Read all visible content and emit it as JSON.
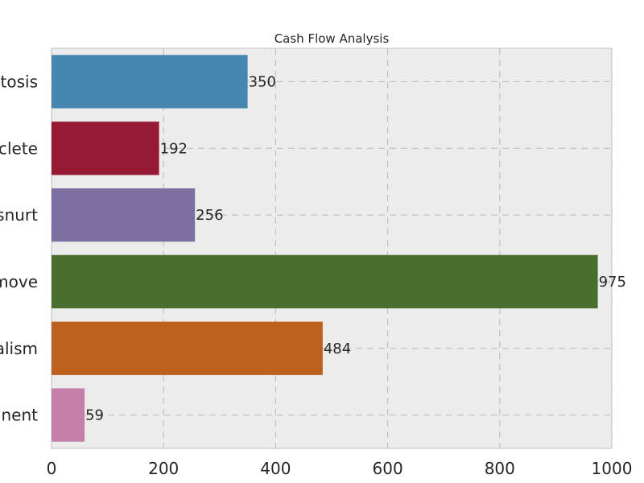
{
  "chart_data": {
    "type": "bar",
    "orientation": "horizontal",
    "title": "Cash Flow Analysis",
    "categories": [
      "stosis",
      "clete",
      "snurt",
      "move",
      "alism",
      "inent"
    ],
    "values": [
      350,
      192,
      256,
      975,
      484,
      59
    ],
    "colors": [
      "#4587b1",
      "#961a33",
      "#7d70a0",
      "#4a6e2d",
      "#bc621e",
      "#c580a9"
    ],
    "xlim": [
      0,
      1000
    ],
    "xticks": [
      0,
      200,
      400,
      600,
      800,
      1000
    ],
    "grid": true
  }
}
